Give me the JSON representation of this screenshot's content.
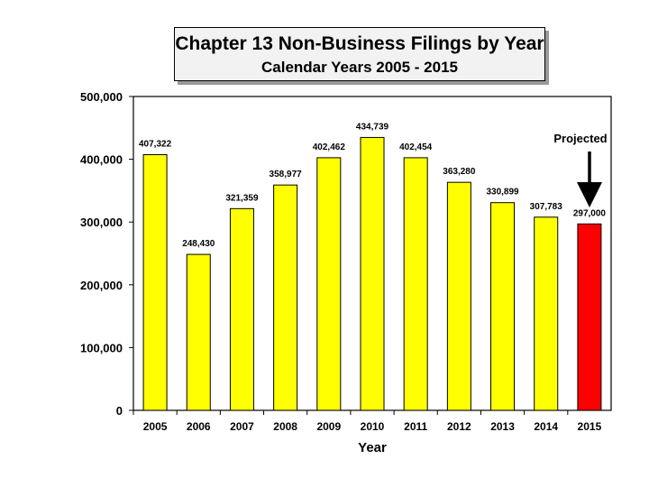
{
  "chart_data": {
    "type": "bar",
    "title": "Chapter 13 Non-Business Filings by Year",
    "subtitle": "Calendar Years 2005 - 2015",
    "xlabel": "Year",
    "ylabel": "",
    "categories": [
      "2005",
      "2006",
      "2007",
      "2008",
      "2009",
      "2010",
      "2011",
      "2012",
      "2013",
      "2014",
      "2015"
    ],
    "values": [
      407322,
      248430,
      321359,
      358977,
      402462,
      434739,
      402454,
      363280,
      330899,
      307783,
      297000
    ],
    "value_labels": [
      "407,322",
      "248,430",
      "321,359",
      "358,977",
      "402,462",
      "434,739",
      "402,454",
      "363,280",
      "330,899",
      "307,783",
      "297,000"
    ],
    "ylim": [
      0,
      500000
    ],
    "yticks": [
      0,
      100000,
      200000,
      300000,
      400000,
      500000
    ],
    "ytick_labels": [
      "0",
      "100,000",
      "200,000",
      "300,000",
      "400,000",
      "500,000"
    ],
    "grid": false,
    "legend": "none",
    "bar_color": "#ffff00",
    "highlight_color": "#ff0000",
    "highlight_category": "2015",
    "annotation": {
      "text": "Projected",
      "target": "2015",
      "arrow": "down"
    }
  }
}
